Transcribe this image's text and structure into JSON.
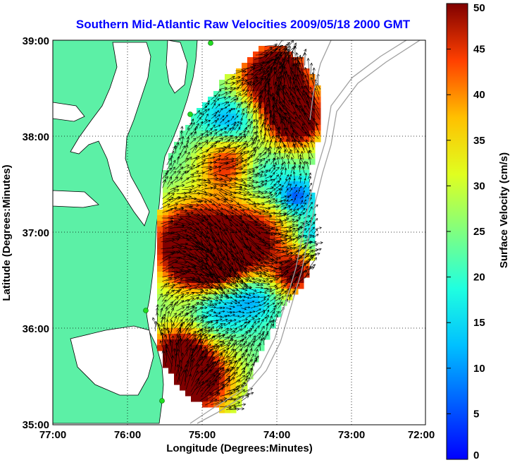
{
  "title": "Southern Mid-Atlantic Raw Velocities 2009/05/18 2000 GMT",
  "x_axis": {
    "label": "Longitude (Degrees:Minutes)",
    "ticks": [
      "77:00",
      "76:00",
      "75:00",
      "74:00",
      "73:00",
      "72:00"
    ]
  },
  "y_axis": {
    "label": "Latitude (Degrees:Minutes)",
    "ticks": [
      "39:00",
      "38:00",
      "37:00",
      "36:00",
      "35:00"
    ]
  },
  "colorbar": {
    "label": "Surface Velocity (cm/s)",
    "ticks": [
      "50",
      "45",
      "40",
      "35",
      "30",
      "25",
      "20",
      "15",
      "10",
      "5",
      "0"
    ],
    "colormap": "jet",
    "range": [
      0,
      50
    ]
  },
  "map": {
    "extent_lon": [
      -77,
      -72
    ],
    "extent_lat": [
      35,
      39
    ],
    "land_color": "#5cf0a6",
    "coastline_color": "#000000",
    "bathymetry_color": "#a0a0a0",
    "grid": "dotted",
    "station_marker_color": "#22dd22"
  }
}
